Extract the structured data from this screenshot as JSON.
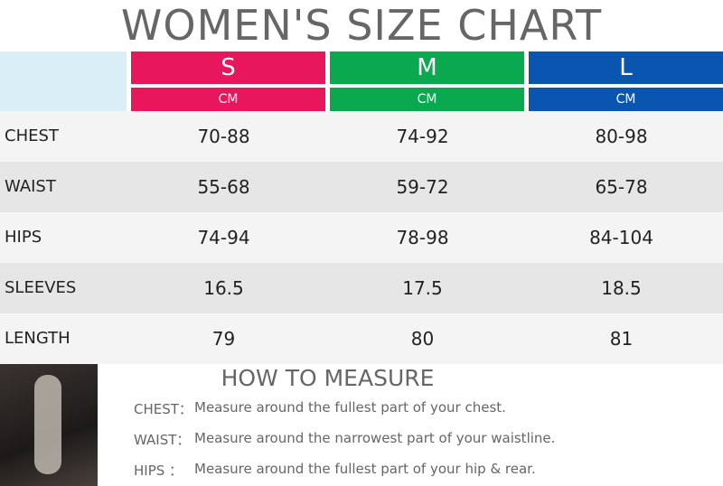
{
  "header": {
    "title": "WOMEN'S SIZE CHART"
  },
  "table": {
    "columns": [
      {
        "size": "S",
        "unit": "CM",
        "color": "#e8175d"
      },
      {
        "size": "M",
        "unit": "CM",
        "color": "#0aa84f"
      },
      {
        "size": "L",
        "unit": "CM",
        "color": "#0a55b0"
      }
    ],
    "rows": [
      {
        "label": "CHEST",
        "values": [
          "70-88",
          "74-92",
          "80-98"
        ]
      },
      {
        "label": "WAIST",
        "values": [
          "55-68",
          "59-72",
          "65-78"
        ]
      },
      {
        "label": "HIPS",
        "values": [
          "74-94",
          "78-98",
          "84-104"
        ]
      },
      {
        "label": "SLEEVES",
        "values": [
          16.5,
          17.5,
          18.5
        ]
      },
      {
        "label": "LENGTH",
        "values": [
          79,
          80,
          81
        ]
      }
    ]
  },
  "how_to_measure": {
    "title": "HOW TO MEASURE",
    "items": [
      {
        "label": "CHEST：",
        "text": "Measure around the fullest part of your chest."
      },
      {
        "label": "WAIST：",
        "text": "Measure around the narrowest part of your waistline."
      },
      {
        "label": "HIPS ：",
        "text": "Measure around the fullest part of your hip & rear."
      }
    ]
  }
}
